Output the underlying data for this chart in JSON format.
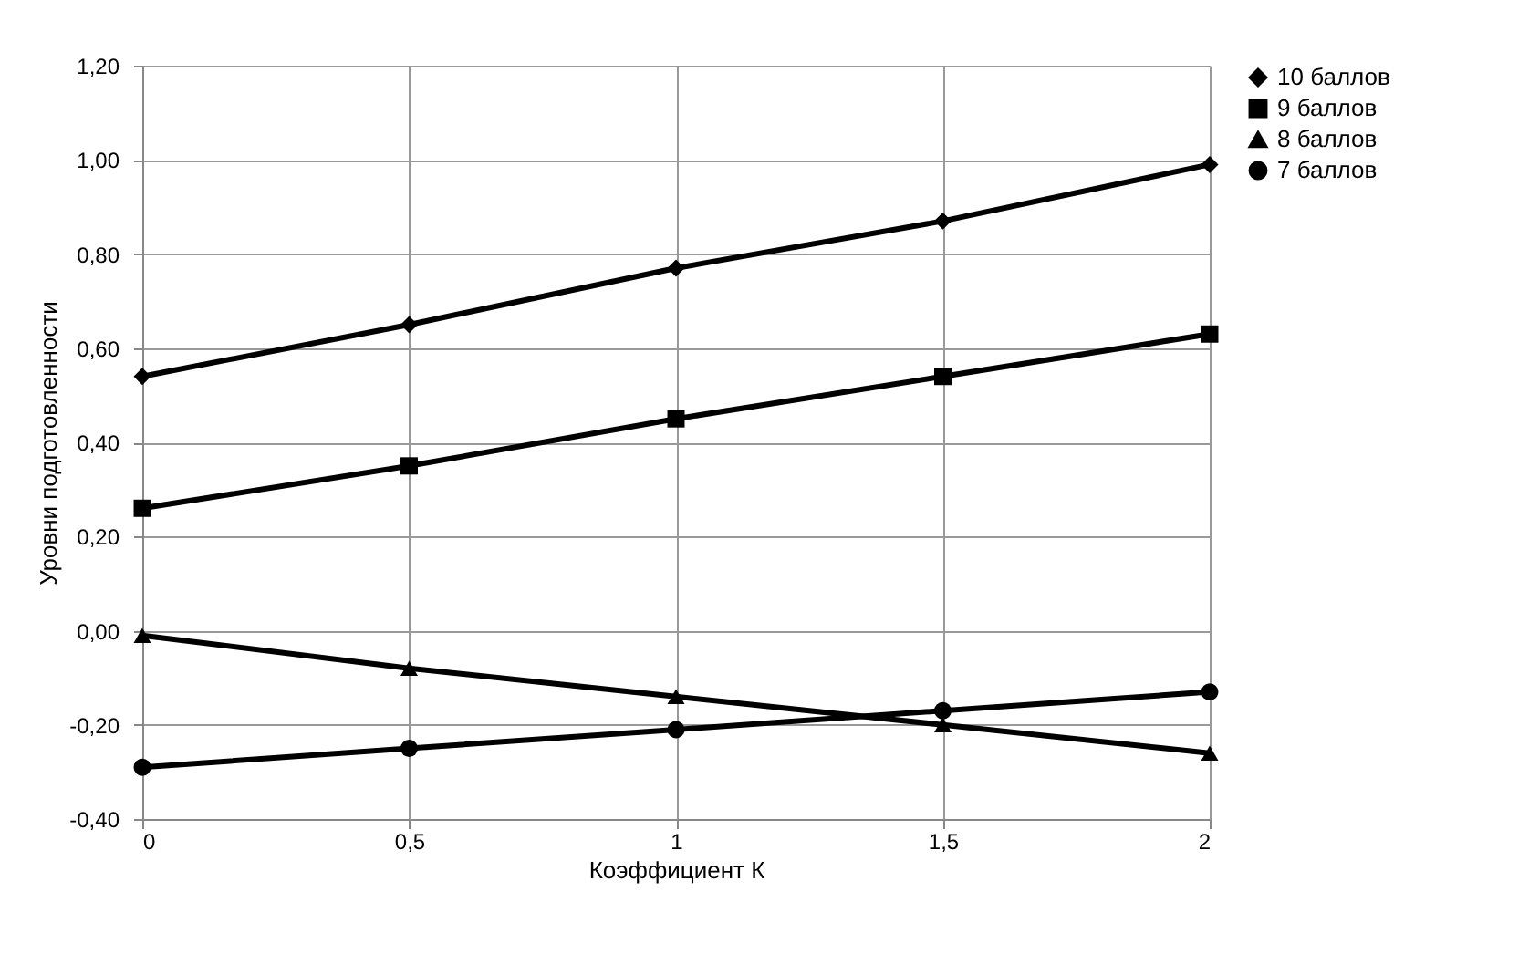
{
  "chart_data": {
    "type": "line",
    "xlabel": "Коэффициент К",
    "ylabel": "Уровни подготовленности",
    "x": [
      0,
      0.5,
      1,
      1.5,
      2
    ],
    "xlim": [
      0,
      2
    ],
    "xticks": [
      0,
      {
        "value": 0.5,
        "label": "0,5"
      },
      1,
      {
        "value": 1.5,
        "label": "1,5"
      },
      2
    ],
    "ylim": [
      -0.4,
      1.2
    ],
    "yticks": [
      {
        "value": -0.4,
        "label": "-0,40"
      },
      {
        "value": -0.2,
        "label": "-0,20"
      },
      {
        "value": 0,
        "label": "0,00"
      },
      {
        "value": 0.2,
        "label": "0,20"
      },
      {
        "value": 0.4,
        "label": "0,40"
      },
      {
        "value": 0.6,
        "label": "0,60"
      },
      {
        "value": 0.8,
        "label": "0,80"
      },
      {
        "value": 1.0,
        "label": "1,00"
      },
      {
        "value": 1.2,
        "label": "1,20"
      }
    ],
    "grid": true,
    "legend": "right",
    "line_style": "solid",
    "series": [
      {
        "name": "10 баллов",
        "color": "#000000",
        "marker": "diamond",
        "values": [
          0.54,
          0.65,
          0.77,
          0.87,
          0.99
        ]
      },
      {
        "name": "9 баллов",
        "color": "#000000",
        "marker": "square",
        "values": [
          0.26,
          0.35,
          0.45,
          0.54,
          0.63
        ]
      },
      {
        "name": "8 баллов",
        "color": "#000000",
        "marker": "triangle",
        "values": [
          -0.01,
          -0.08,
          -0.14,
          -0.2,
          -0.26
        ]
      },
      {
        "name": "7 баллов",
        "color": "#000000",
        "marker": "circle",
        "values": [
          -0.29,
          -0.25,
          -0.21,
          -0.17,
          -0.13
        ]
      }
    ]
  }
}
